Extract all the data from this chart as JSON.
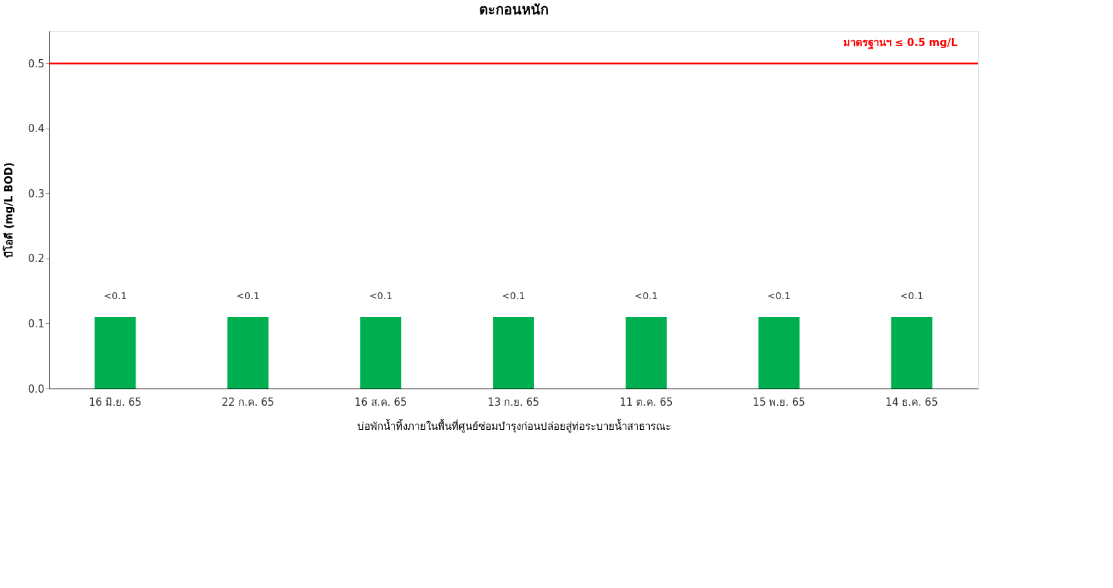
{
  "chart_data": {
    "type": "bar",
    "title": "ตะกอนหนัก",
    "xlabel": "บ่อพักน้ำทิ้งภายในพื้นที่ศูนย์ซ่อมบำรุงก่อนปล่อยสู่ท่อระบายน้ำสาธารณะ",
    "ylabel": "บีโอดี (mg/L BOD)",
    "categories": [
      "16 มิ.ย. 65",
      "22 ก.ค. 65",
      "16 ส.ค. 65",
      "13 ก.ย. 65",
      "11 ต.ค. 65",
      "15 พ.ย. 65",
      "14 ธ.ค. 65"
    ],
    "values": [
      0.11,
      0.11,
      0.11,
      0.11,
      0.11,
      0.11,
      0.11
    ],
    "value_labels": [
      "<0.1",
      "<0.1",
      "<0.1",
      "<0.1",
      "<0.1",
      "<0.1",
      "<0.1"
    ],
    "color": "#00b050",
    "ylim": [
      0,
      0.55
    ],
    "yticks": [
      {
        "value": 0,
        "label": "0.0"
      },
      0.1,
      0.2,
      0.3,
      0.4,
      0.5
    ],
    "ref_lines": [
      {
        "axis": "y",
        "value": 0.5,
        "label": "มาตรฐานฯ ≤ 0.5 mg/L",
        "color": "#ff0000"
      }
    ],
    "grid": false
  }
}
